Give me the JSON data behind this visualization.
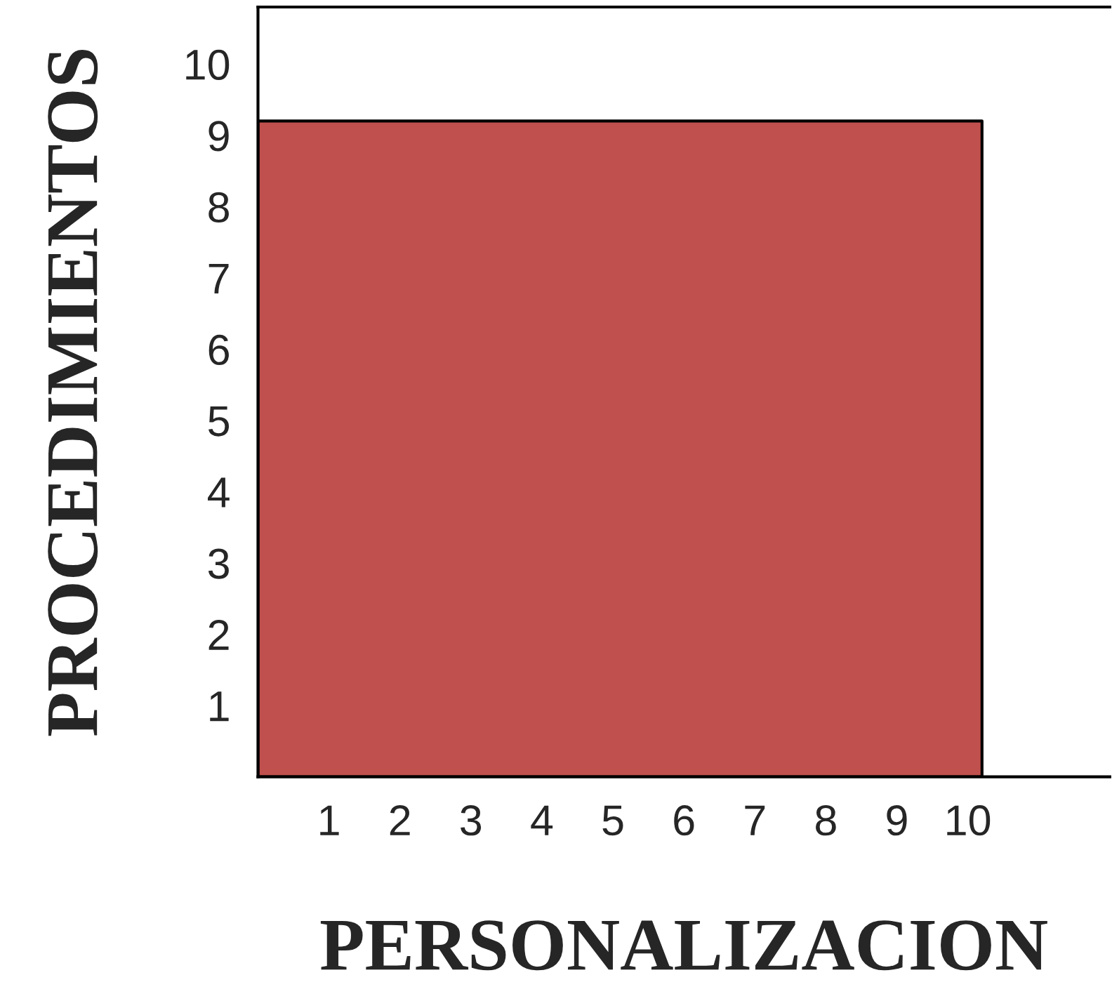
{
  "chart_data": {
    "type": "area",
    "xlabel": "PERSONALIZACION",
    "ylabel": "PROCEDIMIENTOS",
    "x": [
      0,
      10.2
    ],
    "series": [
      {
        "color": "#c0504d",
        "values": [
          9.2,
          9.2
        ]
      }
    ],
    "xlim": [
      0,
      12
    ],
    "ylim": [
      0,
      10.8
    ],
    "xticks": [
      1,
      2,
      3,
      4,
      5,
      6,
      7,
      8,
      9,
      10
    ],
    "yticks": [
      1,
      2,
      3,
      4,
      5,
      6,
      7,
      8,
      9,
      10
    ],
    "grid": false,
    "legend": false
  }
}
